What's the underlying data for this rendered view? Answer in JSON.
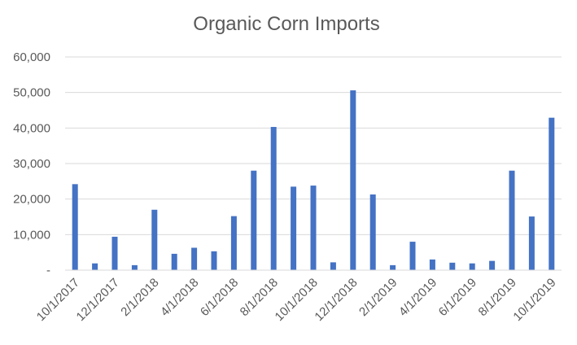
{
  "chart_data": {
    "type": "bar",
    "title": "Organic Corn Imports",
    "xlabel": "",
    "ylabel": "",
    "ylim": [
      0,
      60000
    ],
    "y_ticks": [
      0,
      10000,
      20000,
      30000,
      40000,
      50000,
      60000
    ],
    "y_tick_labels": [
      "-",
      "10,000",
      "20,000",
      "30,000",
      "40,000",
      "50,000",
      "60,000"
    ],
    "grid": true,
    "legend": "none",
    "color": "#4472c4",
    "categories": [
      "10/1/2017",
      "11/1/2017",
      "12/1/2017",
      "1/1/2018",
      "2/1/2018",
      "3/1/2018",
      "4/1/2018",
      "5/1/2018",
      "6/1/2018",
      "7/1/2018",
      "8/1/2018",
      "9/1/2018",
      "10/1/2018",
      "11/1/2018",
      "12/1/2018",
      "1/1/2019",
      "2/1/2019",
      "3/1/2019",
      "4/1/2019",
      "5/1/2019",
      "6/1/2019",
      "7/1/2019",
      "8/1/2019",
      "9/1/2019",
      "10/1/2019"
    ],
    "x_tick_labels": [
      "10/1/2017",
      "",
      "12/1/2017",
      "",
      "2/1/2018",
      "",
      "4/1/2018",
      "",
      "6/1/2018",
      "",
      "8/1/2018",
      "",
      "10/1/2018",
      "",
      "12/1/2018",
      "",
      "2/1/2019",
      "",
      "4/1/2019",
      "",
      "6/1/2019",
      "",
      "8/1/2019",
      "",
      "10/1/2019"
    ],
    "values": [
      24200,
      1900,
      9400,
      1400,
      17000,
      4600,
      6300,
      5300,
      15200,
      28000,
      40300,
      23500,
      23800,
      2200,
      50600,
      21300,
      1400,
      8000,
      3000,
      2100,
      1900,
      2600,
      28000,
      15100,
      42900
    ]
  }
}
